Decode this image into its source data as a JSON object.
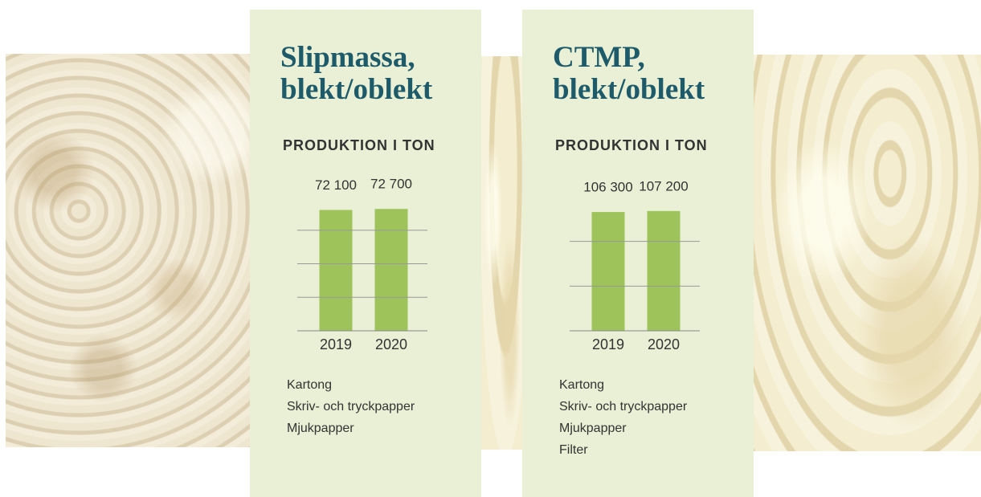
{
  "chart_data": [
    {
      "type": "bar",
      "title": "Slipmassa, blekt/oblekt",
      "subtitle": "PRODUKTION I TON",
      "categories": [
        "2019",
        "2020"
      ],
      "values": [
        72100,
        72700
      ],
      "value_labels": [
        "72 100",
        "72 700"
      ],
      "color": "#9dc35a",
      "ylim": [
        0,
        80000
      ],
      "yticks": [
        0,
        20000,
        40000,
        60000
      ],
      "grid": true,
      "uses": [
        "Kartong",
        "Skriv- och tryckpapper",
        "Mjukpapper"
      ]
    },
    {
      "type": "bar",
      "title": "CTMP, blekt/oblekt",
      "subtitle": "PRODUKTION I TON",
      "categories": [
        "2019",
        "2020"
      ],
      "values": [
        106300,
        107200
      ],
      "value_labels": [
        "106 300",
        "107 200"
      ],
      "color": "#9dc35a",
      "ylim": [
        0,
        120000
      ],
      "yticks": [
        0,
        40000,
        80000
      ],
      "grid": true,
      "uses": [
        "Kartong",
        "Skriv- och tryckpapper",
        "Mjukpapper",
        "Filter"
      ]
    }
  ]
}
